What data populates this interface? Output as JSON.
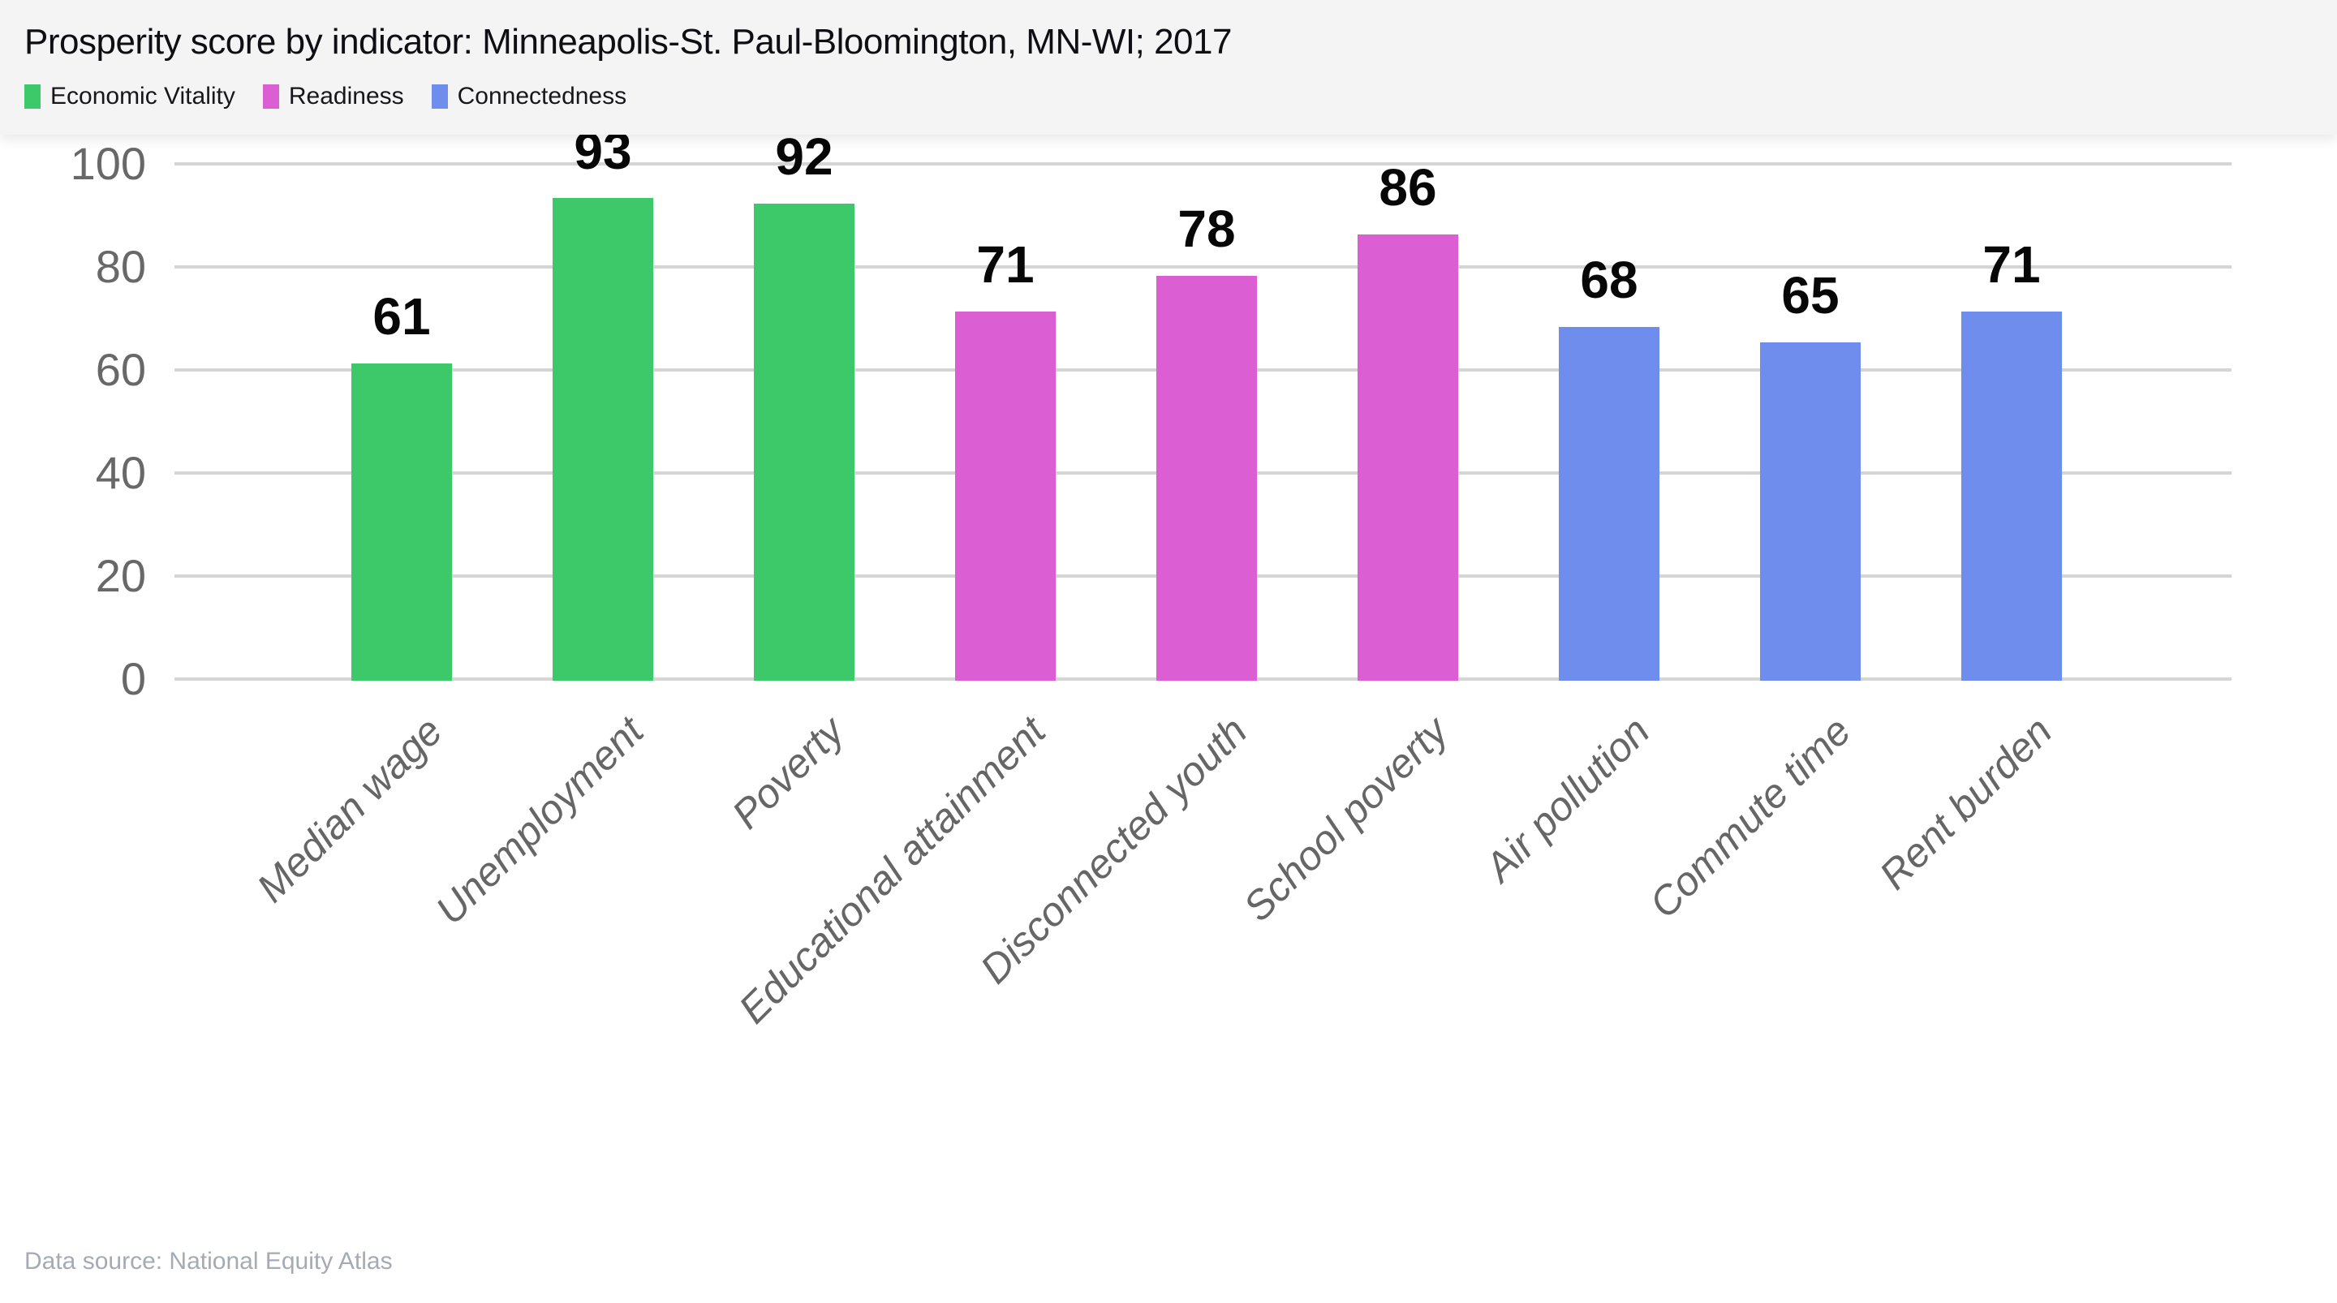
{
  "header": {
    "title": "Prosperity score by indicator: Minneapolis-St. Paul-Bloomington, MN-WI; 2017",
    "legend": [
      {
        "label": "Economic Vitality",
        "color": "#3dc86a"
      },
      {
        "label": "Readiness",
        "color": "#dc5ed3"
      },
      {
        "label": "Connectedness",
        "color": "#6f8dec"
      }
    ]
  },
  "chart_data": {
    "type": "bar",
    "title": "Prosperity score by indicator: Minneapolis-St. Paul-Bloomington, MN-WI; 2017",
    "categories": [
      "Median wage",
      "Unemployment",
      "Poverty",
      "Educational attainment",
      "Disconnected youth",
      "School poverty",
      "Air pollution",
      "Commute time",
      "Rent burden"
    ],
    "values": [
      61,
      93,
      92,
      71,
      78,
      86,
      68,
      65,
      71
    ],
    "bar_groups": [
      "Economic Vitality",
      "Economic Vitality",
      "Economic Vitality",
      "Readiness",
      "Readiness",
      "Readiness",
      "Connectedness",
      "Connectedness",
      "Connectedness"
    ],
    "series": [
      {
        "name": "Economic Vitality",
        "color": "#3dc86a",
        "categories": [
          "Median wage",
          "Unemployment",
          "Poverty"
        ],
        "values": [
          61,
          93,
          92
        ]
      },
      {
        "name": "Readiness",
        "color": "#dc5ed3",
        "categories": [
          "Educational attainment",
          "Disconnected youth",
          "School poverty"
        ],
        "values": [
          71,
          78,
          86
        ]
      },
      {
        "name": "Connectedness",
        "color": "#6f8dec",
        "categories": [
          "Air pollution",
          "Commute time",
          "Rent burden"
        ],
        "values": [
          68,
          65,
          71
        ]
      }
    ],
    "xlabel": "",
    "ylabel": "",
    "ylim": [
      0,
      100
    ],
    "yticks": [
      0,
      20,
      40,
      60,
      80,
      100
    ],
    "grid": true,
    "value_labels": true,
    "legend_position": "top-left",
    "x_tick_rotation": -45
  },
  "footer": {
    "source": "Data source: National Equity Atlas"
  },
  "colors": {
    "economic_vitality": "#3dc86a",
    "readiness": "#dc5ed3",
    "connectedness": "#6f8dec",
    "header_background": "#f4f4f5",
    "gridline": "#d5d5d5",
    "axis_text": "#686868",
    "category_text": "#666666",
    "value_text": "#070707",
    "source_text": "#a4abb4"
  }
}
